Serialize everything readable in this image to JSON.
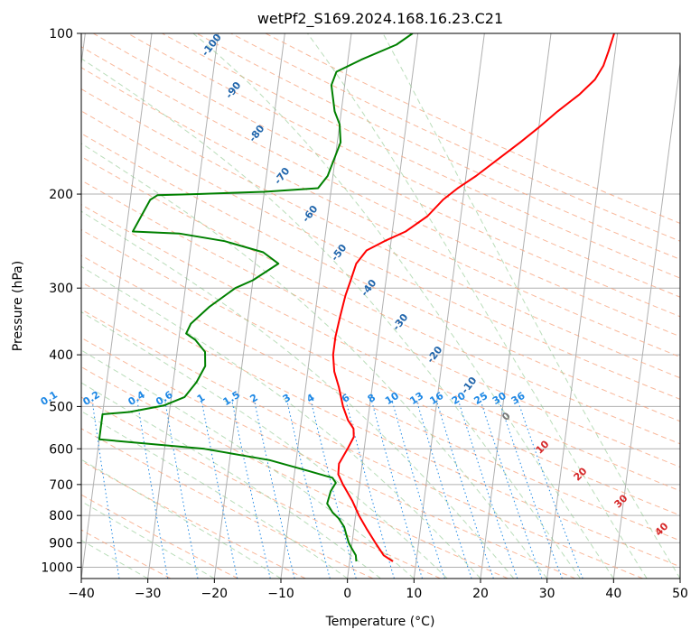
{
  "chart_data": {
    "type": "line",
    "title": "wetPf2_S169.2024.168.16.23.C21",
    "xlabel": "Temperature (°C)",
    "ylabel": "Pressure (hPa)",
    "xlim": [
      -40,
      50
    ],
    "ylim": [
      1050,
      100
    ],
    "y_scale": "log",
    "grid": true,
    "x_ticks": [
      -40,
      -30,
      -20,
      -10,
      0,
      10,
      20,
      30,
      40,
      50
    ],
    "y_ticks": [
      100,
      200,
      300,
      400,
      500,
      600,
      700,
      800,
      900,
      1000
    ],
    "series": [
      {
        "kind": "temperature",
        "color": "#ff0000",
        "points": [
          [
            6.5,
            975
          ],
          [
            5,
            950
          ],
          [
            3.5,
            900
          ],
          [
            2,
            850
          ],
          [
            0.5,
            800
          ],
          [
            -0.8,
            750
          ],
          [
            -2.5,
            700
          ],
          [
            -3.4,
            670
          ],
          [
            -3.5,
            640
          ],
          [
            -2.5,
            600
          ],
          [
            -1.8,
            570
          ],
          [
            -2,
            550
          ],
          [
            -3,
            530
          ],
          [
            -4,
            500
          ],
          [
            -5,
            460
          ],
          [
            -6,
            430
          ],
          [
            -6.5,
            400
          ],
          [
            -6.5,
            370
          ],
          [
            -6.2,
            340
          ],
          [
            -5.8,
            310
          ],
          [
            -5.3,
            290
          ],
          [
            -4.8,
            270
          ],
          [
            -3.5,
            255
          ],
          [
            -1,
            245
          ],
          [
            2,
            235
          ],
          [
            5,
            220
          ],
          [
            7,
            205
          ],
          [
            9,
            195
          ],
          [
            11.5,
            185
          ],
          [
            14.5,
            172
          ],
          [
            17.5,
            160
          ],
          [
            20,
            150
          ],
          [
            22.5,
            140
          ],
          [
            25.5,
            130
          ],
          [
            27.5,
            122
          ],
          [
            28.5,
            115
          ],
          [
            29,
            108
          ],
          [
            29.5,
            100
          ]
        ]
      },
      {
        "kind": "dewpoint",
        "color": "#008000",
        "points": [
          [
            1,
            975
          ],
          [
            0.8,
            950
          ],
          [
            0,
            920
          ],
          [
            -0.5,
            900
          ],
          [
            -1,
            870
          ],
          [
            -1.5,
            840
          ],
          [
            -2.5,
            810
          ],
          [
            -3.5,
            790
          ],
          [
            -4.5,
            760
          ],
          [
            -4.2,
            720
          ],
          [
            -3.6,
            695
          ],
          [
            -4.2,
            680
          ],
          [
            -8,
            660
          ],
          [
            -14,
            630
          ],
          [
            -24,
            600
          ],
          [
            -40,
            576
          ],
          [
            -40,
            517
          ],
          [
            -36,
            512
          ],
          [
            -31,
            498
          ],
          [
            -28,
            480
          ],
          [
            -26.5,
            450
          ],
          [
            -25.5,
            420
          ],
          [
            -25.8,
            395
          ],
          [
            -27.5,
            375
          ],
          [
            -29,
            365
          ],
          [
            -28.5,
            350
          ],
          [
            -26,
            325
          ],
          [
            -22.5,
            300
          ],
          [
            -20,
            290
          ],
          [
            -16.5,
            270
          ],
          [
            -19,
            257
          ],
          [
            -25,
            245
          ],
          [
            -32,
            237
          ],
          [
            -39,
            235
          ],
          [
            -37,
            205
          ],
          [
            -36,
            201
          ],
          [
            -30,
            200
          ],
          [
            -20,
            198
          ],
          [
            -12,
            195
          ],
          [
            -10.8,
            185
          ],
          [
            -10.3,
            175
          ],
          [
            -9.5,
            160
          ],
          [
            -10,
            148
          ],
          [
            -11,
            140
          ],
          [
            -12,
            125
          ],
          [
            -11.5,
            118
          ],
          [
            -8,
            112
          ],
          [
            -3,
            105
          ],
          [
            -0.8,
            100
          ]
        ]
      }
    ],
    "mixing_ratio_labels": [
      "0.1",
      "0.2",
      "0.4",
      "0.6",
      "1",
      "1.5",
      "2",
      "3",
      "4",
      "6",
      "8",
      "10",
      "13",
      "16",
      "20",
      "25",
      "30",
      "36"
    ],
    "dry_adiabat_labels": [
      "-100",
      "-90",
      "-80",
      "-70",
      "-60",
      "-50",
      "-40",
      "-30",
      "-20",
      "-10"
    ],
    "moist_adiabat_labels": [
      "0",
      "10",
      "20",
      "30",
      "40"
    ]
  }
}
